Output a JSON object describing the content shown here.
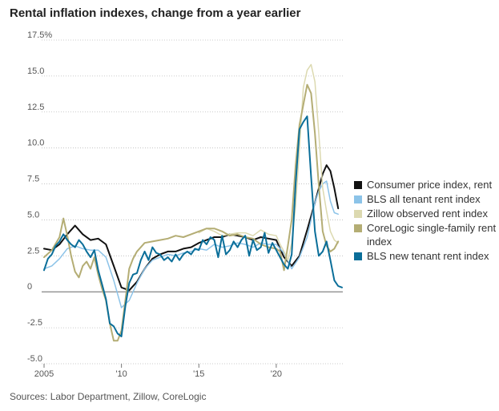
{
  "title": "Rental inflation indexes, change from a year earlier",
  "source": "Sources: Labor Department, Zillow, CoreLogic",
  "chart_data": {
    "type": "line",
    "title": "Rental inflation indexes, change from a year earlier",
    "xlabel": "",
    "ylabel": "",
    "xlim": [
      2005,
      2024.3
    ],
    "ylim": [
      -5,
      17.5
    ],
    "y_ticks": [
      "17.5%",
      "15.0",
      "12.5",
      "10.0",
      "7.5",
      "5.0",
      "2.5",
      "0",
      "-2.5",
      "-5.0"
    ],
    "y_tick_values": [
      17.5,
      15,
      12.5,
      10,
      7.5,
      5,
      2.5,
      0,
      -2.5,
      -5
    ],
    "x_ticks": [
      "2005",
      "'10",
      "'15",
      "'20"
    ],
    "x_tick_values": [
      2005,
      2010,
      2015,
      2020
    ],
    "legend_position": "right",
    "series": [
      {
        "name": "Consumer price index, rent",
        "color": "#111111",
        "width": 2,
        "x": [
          2005.0,
          2005.5,
          2006.0,
          2006.5,
          2007.0,
          2007.5,
          2008.0,
          2008.5,
          2009.0,
          2009.5,
          2010.0,
          2010.5,
          2011.0,
          2011.5,
          2012.0,
          2012.5,
          2013.0,
          2013.5,
          2014.0,
          2014.5,
          2015.0,
          2015.5,
          2016.0,
          2016.5,
          2017.0,
          2017.5,
          2018.0,
          2018.5,
          2019.0,
          2019.5,
          2020.0,
          2020.5,
          2021.0,
          2021.5,
          2022.0,
          2022.5,
          2023.0,
          2023.25,
          2023.5,
          2023.75,
          2024.0
        ],
        "y": [
          3.0,
          2.9,
          3.3,
          4.0,
          4.6,
          4.0,
          3.6,
          3.7,
          3.3,
          1.8,
          0.3,
          0.1,
          0.7,
          1.6,
          2.3,
          2.6,
          2.8,
          2.8,
          3.0,
          3.1,
          3.4,
          3.6,
          3.8,
          3.8,
          4.0,
          3.9,
          3.8,
          3.6,
          3.8,
          3.7,
          3.6,
          2.4,
          1.8,
          2.5,
          4.3,
          6.2,
          8.2,
          8.8,
          8.4,
          7.2,
          5.8
        ]
      },
      {
        "name": "BLS all tenant rent index",
        "color": "#8cc3e8",
        "width": 1.5,
        "x": [
          2005.0,
          2005.5,
          2006.0,
          2006.5,
          2007.0,
          2007.5,
          2008.0,
          2008.5,
          2009.0,
          2009.5,
          2010.0,
          2010.5,
          2011.0,
          2011.5,
          2012.0,
          2012.5,
          2013.0,
          2013.5,
          2014.0,
          2014.5,
          2015.0,
          2015.5,
          2016.0,
          2016.5,
          2017.0,
          2017.5,
          2018.0,
          2018.5,
          2019.0,
          2019.5,
          2020.0,
          2020.5,
          2021.0,
          2021.5,
          2022.0,
          2022.25,
          2022.5,
          2022.75,
          2023.0,
          2023.25,
          2023.5,
          2023.75,
          2024.0
        ],
        "y": [
          1.6,
          1.8,
          2.3,
          3.0,
          3.2,
          3.0,
          2.9,
          2.9,
          2.4,
          0.8,
          -1.1,
          -0.6,
          0.6,
          1.6,
          2.2,
          2.4,
          2.6,
          2.5,
          2.7,
          2.8,
          3.0,
          2.9,
          3.3,
          3.1,
          3.2,
          3.4,
          3.3,
          3.1,
          3.4,
          3.3,
          3.3,
          2.7,
          1.6,
          2.4,
          3.8,
          5.0,
          6.2,
          7.0,
          7.5,
          7.7,
          6.3,
          5.5,
          5.4
        ]
      },
      {
        "name": "Zillow observed rent index",
        "color": "#dcd9b0",
        "width": 1.5,
        "x": [
          2015.0,
          2015.5,
          2016.0,
          2016.5,
          2017.0,
          2017.5,
          2018.0,
          2018.5,
          2019.0,
          2019.5,
          2020.0,
          2020.25,
          2020.5,
          2020.75,
          2021.0,
          2021.25,
          2021.5,
          2021.75,
          2022.0,
          2022.25,
          2022.5,
          2022.75,
          2023.0,
          2023.25,
          2023.5,
          2023.75,
          2024.0
        ],
        "y": [
          4.1,
          4.4,
          4.2,
          3.9,
          4.0,
          4.1,
          4.1,
          3.9,
          4.3,
          4.0,
          3.9,
          3.3,
          2.8,
          2.2,
          3.4,
          6.0,
          10.0,
          14.2,
          15.4,
          15.8,
          14.6,
          11.0,
          7.2,
          5.6,
          4.2,
          3.6,
          3.4
        ]
      },
      {
        "name": "CoreLogic single-family rent index",
        "color": "#b4ad74",
        "width": 2,
        "x": [
          2005.0,
          2005.5,
          2006.0,
          2006.25,
          2006.5,
          2006.75,
          2007.0,
          2007.25,
          2007.5,
          2007.75,
          2008.0,
          2008.25,
          2008.5,
          2008.75,
          2009.0,
          2009.25,
          2009.5,
          2009.75,
          2010.0,
          2010.25,
          2010.5,
          2010.75,
          2011.0,
          2011.5,
          2012.0,
          2012.5,
          2013.0,
          2013.5,
          2014.0,
          2014.5,
          2015.0,
          2015.5,
          2016.0,
          2016.5,
          2017.0,
          2017.5,
          2018.0,
          2018.5,
          2019.0,
          2019.5,
          2020.0,
          2020.25,
          2020.5,
          2020.75,
          2021.0,
          2021.25,
          2021.5,
          2021.75,
          2022.0,
          2022.25,
          2022.5,
          2022.75,
          2023.0,
          2023.25,
          2023.5,
          2023.75,
          2024.0
        ],
        "y": [
          2.4,
          2.9,
          3.8,
          5.1,
          3.9,
          2.5,
          1.4,
          1.0,
          1.8,
          2.1,
          1.6,
          2.4,
          1.2,
          0.2,
          -0.6,
          -2.2,
          -3.4,
          -3.4,
          -2.7,
          -0.6,
          1.6,
          2.3,
          2.8,
          3.4,
          3.5,
          3.6,
          3.7,
          3.9,
          3.8,
          4.0,
          4.2,
          4.4,
          4.4,
          4.2,
          3.9,
          4.0,
          3.8,
          3.7,
          3.3,
          3.1,
          3.0,
          2.8,
          1.5,
          3.2,
          5.0,
          8.8,
          11.6,
          13.0,
          14.4,
          13.8,
          11.0,
          7.4,
          4.2,
          3.2,
          2.8,
          3.0,
          3.5
        ]
      },
      {
        "name": "BLS new tenant rent index",
        "color": "#0a6e99",
        "width": 2,
        "x": [
          2005.0,
          2005.25,
          2005.5,
          2005.75,
          2006.0,
          2006.25,
          2006.5,
          2006.75,
          2007.0,
          2007.25,
          2007.5,
          2007.75,
          2008.0,
          2008.25,
          2008.5,
          2008.75,
          2009.0,
          2009.25,
          2009.5,
          2009.75,
          2010.0,
          2010.25,
          2010.5,
          2010.75,
          2011.0,
          2011.25,
          2011.5,
          2011.75,
          2012.0,
          2012.25,
          2012.5,
          2012.75,
          2013.0,
          2013.25,
          2013.5,
          2013.75,
          2014.0,
          2014.25,
          2014.5,
          2014.75,
          2015.0,
          2015.25,
          2015.5,
          2015.75,
          2016.0,
          2016.25,
          2016.5,
          2016.75,
          2017.0,
          2017.25,
          2017.5,
          2017.75,
          2018.0,
          2018.25,
          2018.5,
          2018.75,
          2019.0,
          2019.25,
          2019.5,
          2019.75,
          2020.0,
          2020.25,
          2020.5,
          2020.75,
          2021.0,
          2021.25,
          2021.5,
          2021.75,
          2022.0,
          2022.25,
          2022.5,
          2022.75,
          2023.0,
          2023.25,
          2023.5,
          2023.75,
          2024.0,
          2024.25
        ],
        "y": [
          1.5,
          2.3,
          2.6,
          3.2,
          3.5,
          4.0,
          3.6,
          3.3,
          3.1,
          3.6,
          3.3,
          2.8,
          2.4,
          2.9,
          1.5,
          0.5,
          -0.5,
          -2.2,
          -2.4,
          -2.9,
          -3.1,
          -1.0,
          0.6,
          1.2,
          1.3,
          2.2,
          2.8,
          2.2,
          3.1,
          2.7,
          2.6,
          2.2,
          2.4,
          2.1,
          2.6,
          2.2,
          2.6,
          2.8,
          2.6,
          3.0,
          2.9,
          3.6,
          3.3,
          3.8,
          3.6,
          2.4,
          3.9,
          2.6,
          2.9,
          3.5,
          3.1,
          3.6,
          3.9,
          2.5,
          3.6,
          2.9,
          3.1,
          4.1,
          2.7,
          3.4,
          2.9,
          2.4,
          1.9,
          1.6,
          2.6,
          7.5,
          11.3,
          11.8,
          12.2,
          8.0,
          4.2,
          2.5,
          2.8,
          3.5,
          2.2,
          0.8,
          0.4,
          0.3
        ]
      }
    ]
  }
}
